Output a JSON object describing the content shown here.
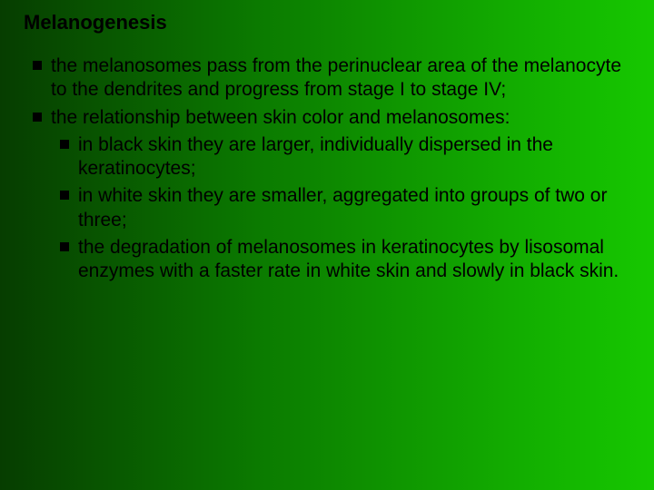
{
  "slide": {
    "title": "Melanogenesis",
    "title_fontsize": 22,
    "body_fontsize": 21,
    "line_height": 1.25,
    "background_gradient": {
      "from": "#063d00",
      "mid": "#0b7b00",
      "to": "#16c800"
    },
    "text_color": "#000000",
    "bullet_color": "#000000",
    "bullets": [
      {
        "text": "the melanosomes pass from the perinuclear area of the melanocyte to the dendrites and progress from stage I to stage IV;"
      },
      {
        "text": "the relationship between skin color and melanosomes:",
        "sub": [
          {
            "text": "in black skin they are larger, individually dispersed in the keratinocytes;"
          },
          {
            "text": "in white skin they are smaller, aggregated into groups of two or three;"
          },
          {
            "text": "the degradation of melanosomes in keratinocytes by lisosomal enzymes with a faster rate in white skin and slowly in black skin."
          }
        ]
      }
    ]
  }
}
